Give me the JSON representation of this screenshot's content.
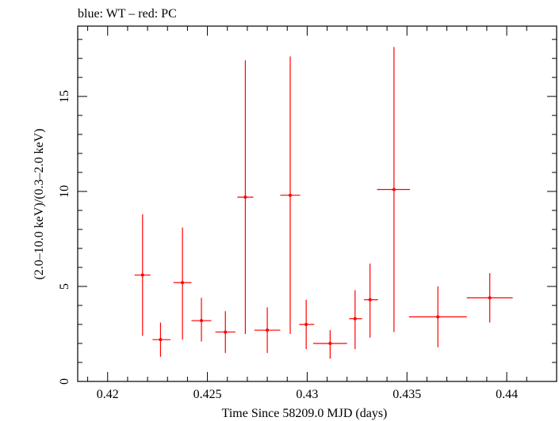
{
  "chart_data": {
    "type": "scatter",
    "title": "blue: WT – red: PC",
    "xlabel": "Time Since 58209.0 MJD (days)",
    "ylabel": "(2.0–10.0 keV)/(0.3–2.0 keV)",
    "xlim": [
      0.4185,
      0.4425
    ],
    "ylim": [
      0,
      18.7
    ],
    "x_ticks": [
      0.42,
      0.425,
      0.43,
      0.435,
      0.44
    ],
    "x_tick_labels": [
      "0.42",
      "0.425",
      "0.43",
      "0.435",
      "0.44"
    ],
    "y_ticks": [
      0,
      5,
      10,
      15
    ],
    "y_tick_labels": [
      "0",
      "5",
      "10",
      "15"
    ],
    "grid": false,
    "legend": "none",
    "series": [
      {
        "color": "#ff0000",
        "points": [
          {
            "x": 0.42175,
            "x_lo": 0.42135,
            "x_hi": 0.42215,
            "y": 5.6,
            "y_lo": 2.4,
            "y_hi": 8.8
          },
          {
            "x": 0.42265,
            "x_lo": 0.42225,
            "x_hi": 0.42315,
            "y": 2.2,
            "y_lo": 1.3,
            "y_hi": 3.1
          },
          {
            "x": 0.42375,
            "x_lo": 0.4233,
            "x_hi": 0.4242,
            "y": 5.2,
            "y_lo": 2.2,
            "y_hi": 8.1
          },
          {
            "x": 0.4247,
            "x_lo": 0.4242,
            "x_hi": 0.4252,
            "y": 3.2,
            "y_lo": 2.1,
            "y_hi": 4.4
          },
          {
            "x": 0.4259,
            "x_lo": 0.4254,
            "x_hi": 0.4264,
            "y": 2.6,
            "y_lo": 1.5,
            "y_hi": 3.7
          },
          {
            "x": 0.4269,
            "x_lo": 0.4265,
            "x_hi": 0.4273,
            "y": 9.7,
            "y_lo": 2.5,
            "y_hi": 16.9
          },
          {
            "x": 0.428,
            "x_lo": 0.42735,
            "x_hi": 0.42865,
            "y": 2.7,
            "y_lo": 1.5,
            "y_hi": 3.9
          },
          {
            "x": 0.42915,
            "x_lo": 0.42865,
            "x_hi": 0.42965,
            "y": 9.8,
            "y_lo": 2.5,
            "y_hi": 17.1
          },
          {
            "x": 0.42995,
            "x_lo": 0.4296,
            "x_hi": 0.43035,
            "y": 3.0,
            "y_lo": 1.7,
            "y_hi": 4.3
          },
          {
            "x": 0.43115,
            "x_lo": 0.4303,
            "x_hi": 0.432,
            "y": 2.0,
            "y_lo": 1.2,
            "y_hi": 2.7
          },
          {
            "x": 0.4324,
            "x_lo": 0.4321,
            "x_hi": 0.43275,
            "y": 3.3,
            "y_lo": 1.7,
            "y_hi": 4.8
          },
          {
            "x": 0.43315,
            "x_lo": 0.43285,
            "x_hi": 0.43355,
            "y": 4.3,
            "y_lo": 2.3,
            "y_hi": 6.2
          },
          {
            "x": 0.43435,
            "x_lo": 0.4335,
            "x_hi": 0.43515,
            "y": 10.1,
            "y_lo": 2.6,
            "y_hi": 17.6
          },
          {
            "x": 0.43655,
            "x_lo": 0.4351,
            "x_hi": 0.438,
            "y": 3.4,
            "y_lo": 1.8,
            "y_hi": 5.0
          },
          {
            "x": 0.43915,
            "x_lo": 0.438,
            "x_hi": 0.4403,
            "y": 4.4,
            "y_lo": 3.1,
            "y_hi": 5.7
          }
        ]
      }
    ]
  }
}
